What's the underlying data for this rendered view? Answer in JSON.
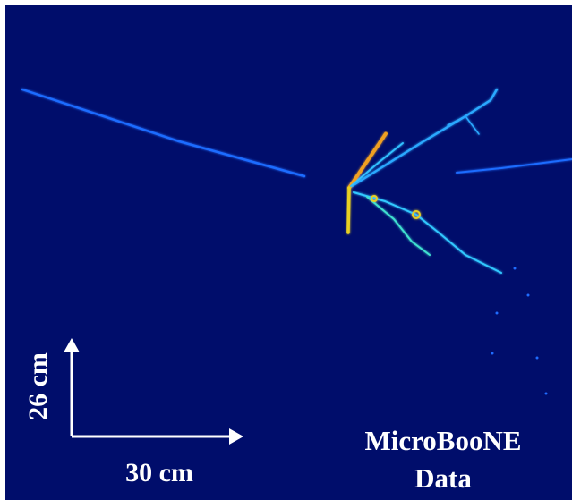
{
  "labels": {
    "vertical_scale": "26 cm",
    "horizontal_scale": "30 cm",
    "experiment": "MicroBooNE",
    "caption": "Data"
  }
}
